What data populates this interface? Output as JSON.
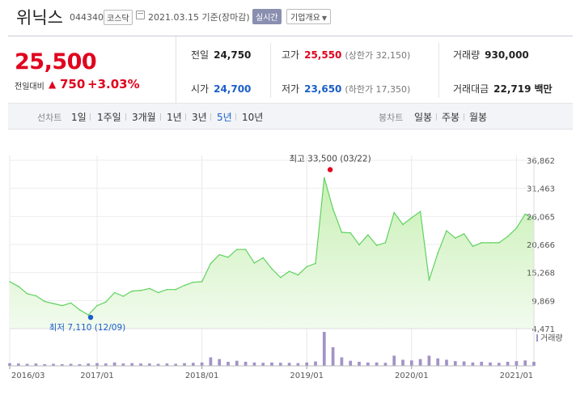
{
  "header": {
    "name": "위닉스",
    "code": "044340",
    "market": "코스닥",
    "date": "2021.03.15 기준(장마감)",
    "live": "실시간",
    "info": "기업개요"
  },
  "quote": {
    "price": "25,500",
    "change_label": "전일대비",
    "change": "750",
    "change_pct": "+3.03%",
    "prev_label": "전일",
    "prev": "24,750",
    "high_label": "고가",
    "high": "25,550",
    "upper_limit": "(상한가 32,150)",
    "volume_label": "거래량",
    "volume": "930,000",
    "open_label": "시가",
    "open": "24,700",
    "low_label": "저가",
    "low": "23,650",
    "lower_limit": "(하한가 17,350)",
    "amount_label": "거래대금",
    "amount": "22,719",
    "amount_unit": "백만"
  },
  "period_tabs": {
    "label": "선차트",
    "items": [
      "1일",
      "1주일",
      "3개월",
      "1년",
      "3년",
      "5년",
      "10년"
    ],
    "selected": "5년"
  },
  "candle_tabs": {
    "label": "봉차트",
    "items": [
      "일봉",
      "주봉",
      "월봉"
    ]
  },
  "colors": {
    "rise": "#e0021e",
    "fall": "#1a5fc8",
    "line": "#5fd25f",
    "fill_top": "#c8f0b4",
    "fill_bottom": "#f2fbee",
    "volume": "#a393c7"
  },
  "chart_data": {
    "type": "area",
    "xlim": [
      "2016-03",
      "2021-03"
    ],
    "ylim": [
      4471,
      36862
    ],
    "yticks": [
      "36,862",
      "31,463",
      "26,065",
      "20,666",
      "15,268",
      "9,869",
      "4,471"
    ],
    "xticks": [
      "2016/03",
      "2017/01",
      "2018/01",
      "2019/01",
      "2020/01",
      "2021/01"
    ],
    "volume_legend": "거래량",
    "max_label": "최고 33,500 (03/22)",
    "min_label": "최저 7,110 (12/09)",
    "max_point": {
      "x": "2019-03-22",
      "y": 33500
    },
    "min_point": {
      "x": "2016-12-09",
      "y": 7110
    },
    "series": [
      {
        "x": [
          "2016-03",
          "2016-04",
          "2016-05",
          "2016-06",
          "2016-07",
          "2016-08",
          "2016-09",
          "2016-10",
          "2016-11",
          "2016-12",
          "2017-01",
          "2017-02",
          "2017-03",
          "2017-04",
          "2017-05",
          "2017-06",
          "2017-07",
          "2017-08",
          "2017-09",
          "2017-10",
          "2017-11",
          "2017-12",
          "2018-01",
          "2018-02",
          "2018-03",
          "2018-04",
          "2018-05",
          "2018-06",
          "2018-07",
          "2018-08",
          "2018-09",
          "2018-10",
          "2018-11",
          "2018-12",
          "2019-01",
          "2019-02",
          "2019-03",
          "2019-04",
          "2019-05",
          "2019-06",
          "2019-07",
          "2019-08",
          "2019-09",
          "2019-10",
          "2019-11",
          "2019-12",
          "2020-01",
          "2020-02",
          "2020-03",
          "2020-04",
          "2020-05",
          "2020-06",
          "2020-07",
          "2020-08",
          "2020-09",
          "2020-10",
          "2020-11",
          "2020-12",
          "2021-01",
          "2021-02",
          "2021-03"
        ],
        "y": [
          13500,
          12600,
          11200,
          10800,
          9700,
          9300,
          8900,
          9400,
          8100,
          7110,
          8900,
          9600,
          11400,
          10700,
          11700,
          11800,
          12200,
          11400,
          12000,
          12000,
          12800,
          13400,
          13500,
          17000,
          18700,
          18200,
          19700,
          19700,
          17100,
          18100,
          16000,
          14300,
          15500,
          14800,
          16400,
          17000,
          33500,
          27500,
          23000,
          22900,
          20600,
          22500,
          20500,
          21000,
          26800,
          24500,
          25800,
          27000,
          13800,
          19000,
          23300,
          21900,
          22700,
          20300,
          21000,
          21000,
          21000,
          22200,
          23800,
          26500,
          25500
        ]
      }
    ],
    "volume": [
      0.08,
      0.07,
      0.06,
      0.07,
      0.05,
      0.06,
      0.05,
      0.06,
      0.05,
      0.07,
      0.08,
      0.07,
      0.1,
      0.07,
      0.08,
      0.07,
      0.07,
      0.06,
      0.07,
      0.06,
      0.08,
      0.09,
      0.1,
      0.25,
      0.2,
      0.12,
      0.15,
      0.12,
      0.1,
      0.09,
      0.1,
      0.09,
      0.09,
      0.08,
      0.1,
      0.13,
      1.0,
      0.55,
      0.25,
      0.15,
      0.12,
      0.1,
      0.1,
      0.09,
      0.3,
      0.18,
      0.16,
      0.2,
      0.3,
      0.22,
      0.18,
      0.14,
      0.13,
      0.1,
      0.12,
      0.1,
      0.09,
      0.12,
      0.14,
      0.16,
      0.12
    ]
  }
}
